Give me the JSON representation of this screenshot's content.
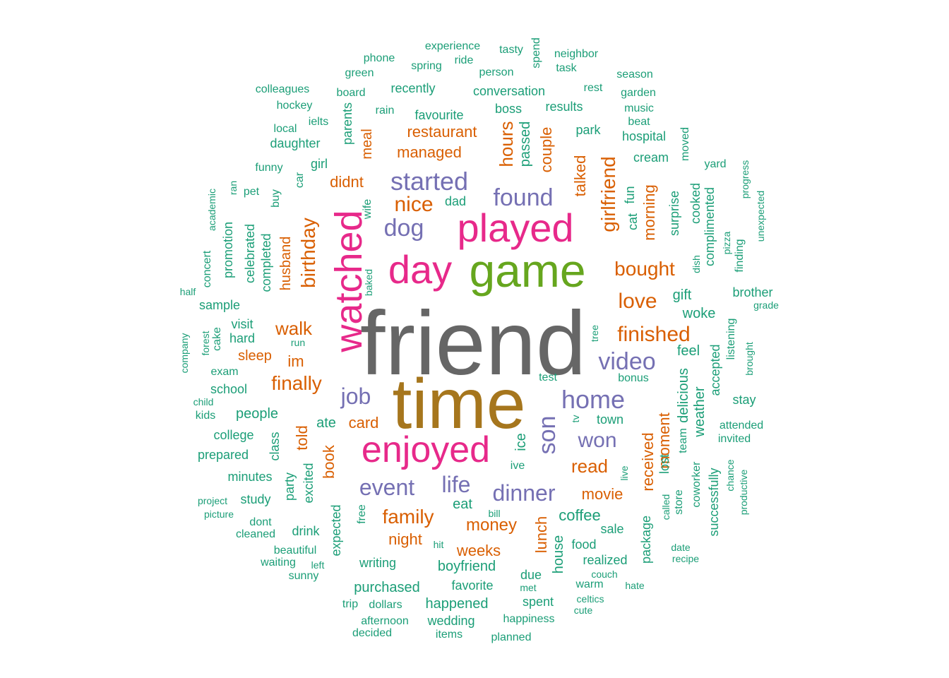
{
  "palette": {
    "c1": "#1B9E77",
    "c2": "#D95F02",
    "c3": "#7570B3",
    "c4": "#E7298A",
    "c5": "#66A61E",
    "c6": "#A6761D",
    "c7": "#666666"
  },
  "words": [
    {
      "t": "friend",
      "c": "c7"
    },
    {
      "t": "time",
      "c": "c6"
    },
    {
      "t": "game",
      "c": "c5"
    },
    {
      "t": "day",
      "c": "c4"
    },
    {
      "t": "played",
      "c": "c4"
    },
    {
      "t": "watched",
      "c": "c4"
    },
    {
      "t": "enjoyed",
      "c": "c4"
    },
    {
      "t": "started",
      "c": "c3"
    },
    {
      "t": "found",
      "c": "c3"
    },
    {
      "t": "dog",
      "c": "c3"
    },
    {
      "t": "home",
      "c": "c3"
    },
    {
      "t": "video",
      "c": "c3"
    },
    {
      "t": "son",
      "c": "c3"
    },
    {
      "t": "job",
      "c": "c3"
    },
    {
      "t": "won",
      "c": "c3"
    },
    {
      "t": "event",
      "c": "c3"
    },
    {
      "t": "life",
      "c": "c3"
    },
    {
      "t": "dinner",
      "c": "c3"
    },
    {
      "t": "nice",
      "c": "c2"
    },
    {
      "t": "girlfriend",
      "c": "c2"
    },
    {
      "t": "bought",
      "c": "c2"
    },
    {
      "t": "love",
      "c": "c2"
    },
    {
      "t": "finished",
      "c": "c2"
    },
    {
      "t": "birthday",
      "c": "c2"
    },
    {
      "t": "walk",
      "c": "c2"
    },
    {
      "t": "finally",
      "c": "c2"
    },
    {
      "t": "family",
      "c": "c2"
    },
    {
      "t": "read",
      "c": "c2"
    },
    {
      "t": "money",
      "c": "c2"
    },
    {
      "t": "movie",
      "c": "c2"
    },
    {
      "t": "hours",
      "c": "c2"
    },
    {
      "t": "restaurant",
      "c": "c2"
    },
    {
      "t": "managed",
      "c": "c2"
    },
    {
      "t": "didnt",
      "c": "c2"
    },
    {
      "t": "talked",
      "c": "c2"
    },
    {
      "t": "couple",
      "c": "c2"
    },
    {
      "t": "morning",
      "c": "c2"
    },
    {
      "t": "husband",
      "c": "c2"
    },
    {
      "t": "meal",
      "c": "c2"
    },
    {
      "t": "sleep",
      "c": "c2"
    },
    {
      "t": "im",
      "c": "c2"
    },
    {
      "t": "card",
      "c": "c2"
    },
    {
      "t": "told",
      "c": "c2"
    },
    {
      "t": "book",
      "c": "c2"
    },
    {
      "t": "night",
      "c": "c2"
    },
    {
      "t": "weeks",
      "c": "c2"
    },
    {
      "t": "lunch",
      "c": "c2"
    },
    {
      "t": "received",
      "c": "c2"
    },
    {
      "t": "moment",
      "c": "c2"
    },
    {
      "t": "experience",
      "c": "c1"
    },
    {
      "t": "tasty",
      "c": "c1"
    },
    {
      "t": "spend",
      "c": "c1"
    },
    {
      "t": "neighbor",
      "c": "c1"
    },
    {
      "t": "phone",
      "c": "c1"
    },
    {
      "t": "ride",
      "c": "c1"
    },
    {
      "t": "spring",
      "c": "c1"
    },
    {
      "t": "task",
      "c": "c1"
    },
    {
      "t": "green",
      "c": "c1"
    },
    {
      "t": "person",
      "c": "c1"
    },
    {
      "t": "season",
      "c": "c1"
    },
    {
      "t": "colleagues",
      "c": "c1"
    },
    {
      "t": "board",
      "c": "c1"
    },
    {
      "t": "recently",
      "c": "c1"
    },
    {
      "t": "conversation",
      "c": "c1"
    },
    {
      "t": "rest",
      "c": "c1"
    },
    {
      "t": "garden",
      "c": "c1"
    },
    {
      "t": "hockey",
      "c": "c1"
    },
    {
      "t": "rain",
      "c": "c1"
    },
    {
      "t": "favourite",
      "c": "c1"
    },
    {
      "t": "boss",
      "c": "c1"
    },
    {
      "t": "results",
      "c": "c1"
    },
    {
      "t": "music",
      "c": "c1"
    },
    {
      "t": "parents",
      "c": "c1"
    },
    {
      "t": "ielts",
      "c": "c1"
    },
    {
      "t": "beat",
      "c": "c1"
    },
    {
      "t": "local",
      "c": "c1"
    },
    {
      "t": "passed",
      "c": "c1"
    },
    {
      "t": "park",
      "c": "c1"
    },
    {
      "t": "hospital",
      "c": "c1"
    },
    {
      "t": "daughter",
      "c": "c1"
    },
    {
      "t": "moved",
      "c": "c1"
    },
    {
      "t": "cream",
      "c": "c1"
    },
    {
      "t": "girl",
      "c": "c1"
    },
    {
      "t": "funny",
      "c": "c1"
    },
    {
      "t": "car",
      "c": "c1"
    },
    {
      "t": "yard",
      "c": "c1"
    },
    {
      "t": "progress",
      "c": "c1"
    },
    {
      "t": "ran",
      "c": "c1"
    },
    {
      "t": "academic",
      "c": "c1"
    },
    {
      "t": "pet",
      "c": "c1"
    },
    {
      "t": "buy",
      "c": "c1"
    },
    {
      "t": "dad",
      "c": "c1"
    },
    {
      "t": "wife",
      "c": "c1"
    },
    {
      "t": "cat",
      "c": "c1"
    },
    {
      "t": "fun",
      "c": "c1"
    },
    {
      "t": "surprise",
      "c": "c1"
    },
    {
      "t": "cooked",
      "c": "c1"
    },
    {
      "t": "complimented",
      "c": "c1"
    },
    {
      "t": "unexpected",
      "c": "c1"
    },
    {
      "t": "promotion",
      "c": "c1"
    },
    {
      "t": "celebrated",
      "c": "c1"
    },
    {
      "t": "completed",
      "c": "c1"
    },
    {
      "t": "concert",
      "c": "c1"
    },
    {
      "t": "pizza",
      "c": "c1"
    },
    {
      "t": "finding",
      "c": "c1"
    },
    {
      "t": "dish",
      "c": "c1"
    },
    {
      "t": "baked",
      "c": "c1"
    },
    {
      "t": "half",
      "c": "c1"
    },
    {
      "t": "sample",
      "c": "c1"
    },
    {
      "t": "gift",
      "c": "c1"
    },
    {
      "t": "brother",
      "c": "c1"
    },
    {
      "t": "grade",
      "c": "c1"
    },
    {
      "t": "woke",
      "c": "c1"
    },
    {
      "t": "company",
      "c": "c1"
    },
    {
      "t": "forest",
      "c": "c1"
    },
    {
      "t": "cake",
      "c": "c1"
    },
    {
      "t": "visit",
      "c": "c1"
    },
    {
      "t": "hard",
      "c": "c1"
    },
    {
      "t": "run",
      "c": "c1"
    },
    {
      "t": "tree",
      "c": "c1"
    },
    {
      "t": "listening",
      "c": "c1"
    },
    {
      "t": "brought",
      "c": "c1"
    },
    {
      "t": "feel",
      "c": "c1"
    },
    {
      "t": "exam",
      "c": "c1"
    },
    {
      "t": "accepted",
      "c": "c1"
    },
    {
      "t": "test",
      "c": "c1"
    },
    {
      "t": "bonus",
      "c": "c1"
    },
    {
      "t": "school",
      "c": "c1"
    },
    {
      "t": "delicious",
      "c": "c1"
    },
    {
      "t": "weather",
      "c": "c1"
    },
    {
      "t": "child",
      "c": "c1"
    },
    {
      "t": "stay",
      "c": "c1"
    },
    {
      "t": "kids",
      "c": "c1"
    },
    {
      "t": "people",
      "c": "c1"
    },
    {
      "t": "ate",
      "c": "c1"
    },
    {
      "t": "tv",
      "c": "c1"
    },
    {
      "t": "town",
      "c": "c1"
    },
    {
      "t": "attended",
      "c": "c1"
    },
    {
      "t": "college",
      "c": "c1"
    },
    {
      "t": "class",
      "c": "c1"
    },
    {
      "t": "ice",
      "c": "c1"
    },
    {
      "t": "team",
      "c": "c1"
    },
    {
      "t": "invited",
      "c": "c1"
    },
    {
      "t": "prepared",
      "c": "c1"
    },
    {
      "t": "lost",
      "c": "c1"
    },
    {
      "t": "minutes",
      "c": "c1"
    },
    {
      "t": "party",
      "c": "c1"
    },
    {
      "t": "excited",
      "c": "c1"
    },
    {
      "t": "ive",
      "c": "c1"
    },
    {
      "t": "live",
      "c": "c1"
    },
    {
      "t": "chance",
      "c": "c1"
    },
    {
      "t": "coworker",
      "c": "c1"
    },
    {
      "t": "successfully",
      "c": "c1"
    },
    {
      "t": "project",
      "c": "c1"
    },
    {
      "t": "study",
      "c": "c1"
    },
    {
      "t": "productive",
      "c": "c1"
    },
    {
      "t": "picture",
      "c": "c1"
    },
    {
      "t": "eat",
      "c": "c1"
    },
    {
      "t": "bill",
      "c": "c1"
    },
    {
      "t": "store",
      "c": "c1"
    },
    {
      "t": "called",
      "c": "c1"
    },
    {
      "t": "dont",
      "c": "c1"
    },
    {
      "t": "free",
      "c": "c1"
    },
    {
      "t": "coffee",
      "c": "c1"
    },
    {
      "t": "cleaned",
      "c": "c1"
    },
    {
      "t": "drink",
      "c": "c1"
    },
    {
      "t": "expected",
      "c": "c1"
    },
    {
      "t": "sale",
      "c": "c1"
    },
    {
      "t": "package",
      "c": "c1"
    },
    {
      "t": "beautiful",
      "c": "c1"
    },
    {
      "t": "hit",
      "c": "c1"
    },
    {
      "t": "house",
      "c": "c1"
    },
    {
      "t": "food",
      "c": "c1"
    },
    {
      "t": "date",
      "c": "c1"
    },
    {
      "t": "waiting",
      "c": "c1"
    },
    {
      "t": "left",
      "c": "c1"
    },
    {
      "t": "writing",
      "c": "c1"
    },
    {
      "t": "boyfriend",
      "c": "c1"
    },
    {
      "t": "realized",
      "c": "c1"
    },
    {
      "t": "recipe",
      "c": "c1"
    },
    {
      "t": "sunny",
      "c": "c1"
    },
    {
      "t": "due",
      "c": "c1"
    },
    {
      "t": "couch",
      "c": "c1"
    },
    {
      "t": "purchased",
      "c": "c1"
    },
    {
      "t": "favorite",
      "c": "c1"
    },
    {
      "t": "met",
      "c": "c1"
    },
    {
      "t": "warm",
      "c": "c1"
    },
    {
      "t": "hate",
      "c": "c1"
    },
    {
      "t": "celtics",
      "c": "c1"
    },
    {
      "t": "trip",
      "c": "c1"
    },
    {
      "t": "dollars",
      "c": "c1"
    },
    {
      "t": "happened",
      "c": "c1"
    },
    {
      "t": "spent",
      "c": "c1"
    },
    {
      "t": "cute",
      "c": "c1"
    },
    {
      "t": "afternoon",
      "c": "c1"
    },
    {
      "t": "wedding",
      "c": "c1"
    },
    {
      "t": "happiness",
      "c": "c1"
    },
    {
      "t": "decided",
      "c": "c1"
    },
    {
      "t": "items",
      "c": "c1"
    },
    {
      "t": "planned",
      "c": "c1"
    }
  ]
}
